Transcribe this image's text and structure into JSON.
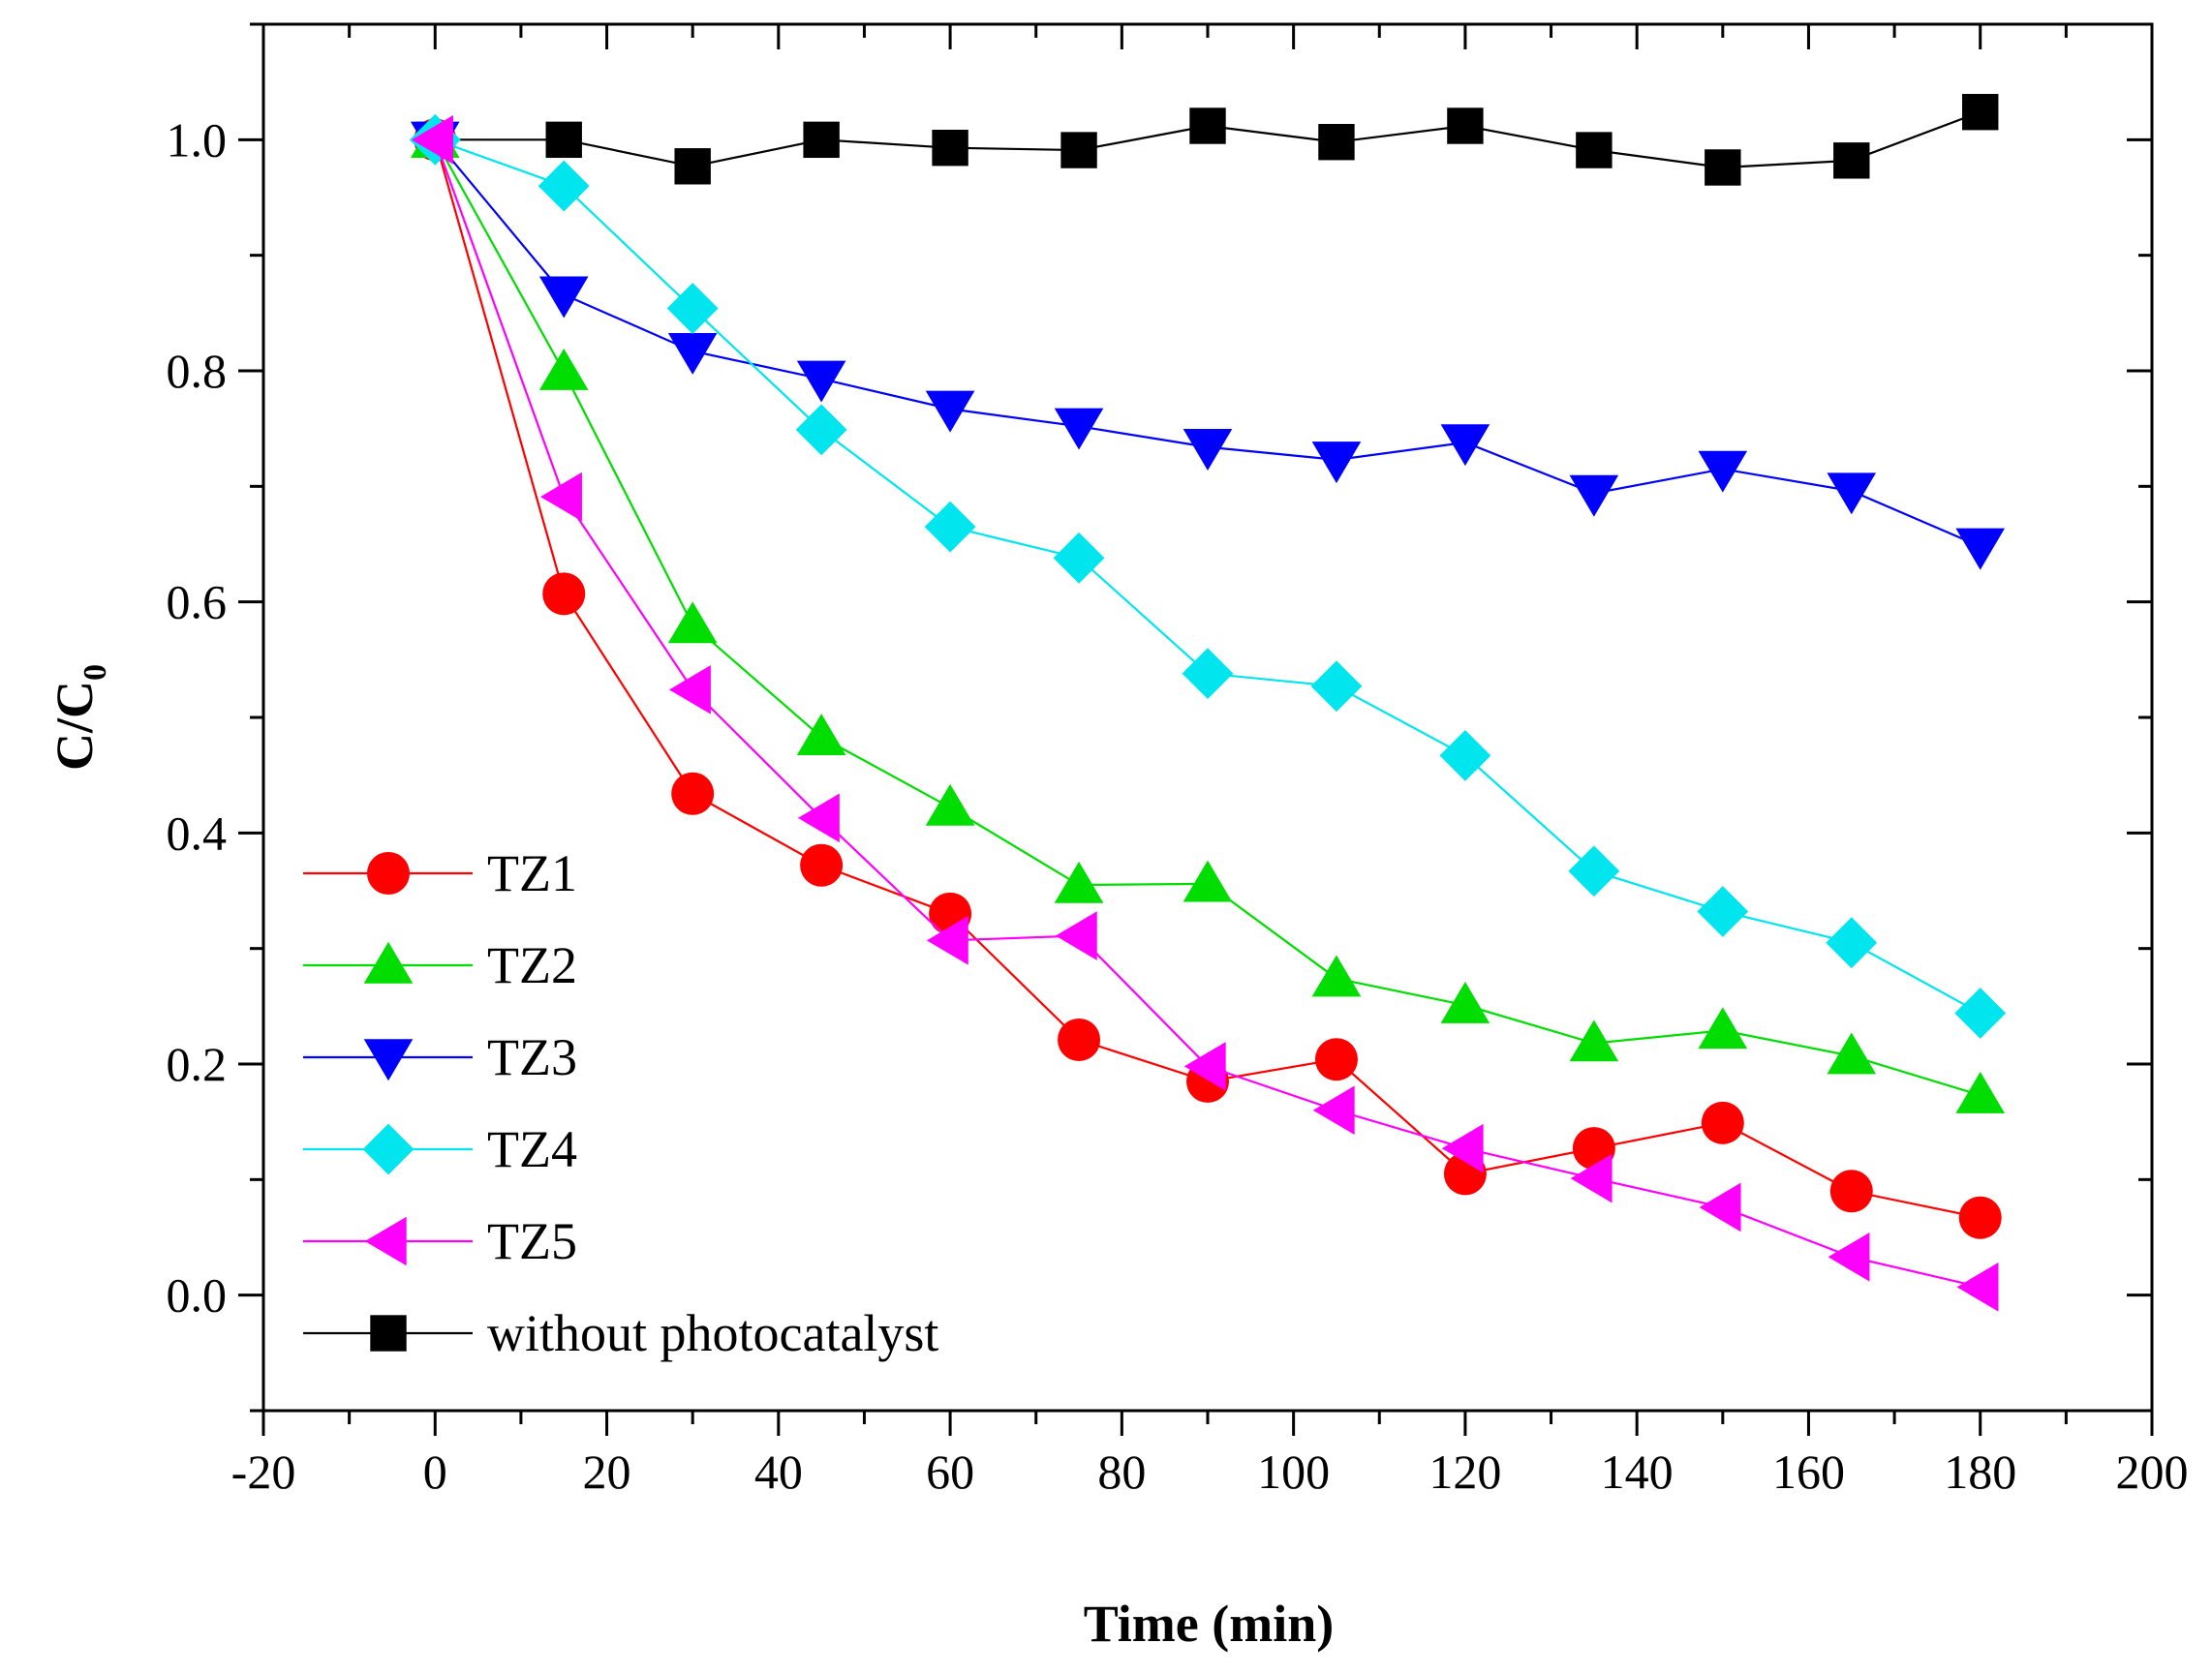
{
  "chart_data": {
    "type": "line",
    "title": "",
    "xlabel": "Time (min)",
    "ylabel": "C/C",
    "ylabel_sub": "0",
    "xlim": [
      -20,
      200
    ],
    "ylim": [
      -0.1,
      1.1
    ],
    "xticks": [
      -20,
      0,
      20,
      40,
      60,
      80,
      100,
      120,
      140,
      160,
      180,
      200
    ],
    "yticks": [
      "0.0",
      "0.2",
      "0.4",
      "0.6",
      "0.8",
      "1.0"
    ],
    "grid": false,
    "legend_position": "bottom-left",
    "x": [
      0,
      15,
      30,
      45,
      60,
      75,
      90,
      105,
      120,
      135,
      150,
      165,
      180
    ],
    "series": [
      {
        "name": "TZ1",
        "color": "#ff0000",
        "marker": "circle",
        "values": [
          1.0,
          0.607,
          0.434,
          0.372,
          0.33,
          0.221,
          0.185,
          0.204,
          0.105,
          0.127,
          0.149,
          0.09,
          0.067
        ]
      },
      {
        "name": "TZ2",
        "color": "#00dd00",
        "marker": "triangle-up",
        "values": [
          1.0,
          0.799,
          0.58,
          0.483,
          0.422,
          0.355,
          0.356,
          0.274,
          0.251,
          0.218,
          0.229,
          0.207,
          0.173
        ]
      },
      {
        "name": "TZ3",
        "color": "#0000ff",
        "marker": "triangle-down",
        "values": [
          1.0,
          0.866,
          0.817,
          0.793,
          0.767,
          0.752,
          0.734,
          0.723,
          0.738,
          0.694,
          0.715,
          0.696,
          0.648
        ]
      },
      {
        "name": "TZ4",
        "color": "#00e5ee",
        "marker": "diamond",
        "values": [
          1.0,
          0.96,
          0.854,
          0.749,
          0.665,
          0.638,
          0.538,
          0.527,
          0.467,
          0.367,
          0.332,
          0.305,
          0.244
        ]
      },
      {
        "name": "TZ5",
        "color": "#ff00ff",
        "marker": "triangle-left",
        "values": [
          1.0,
          0.691,
          0.524,
          0.413,
          0.307,
          0.311,
          0.198,
          0.16,
          0.127,
          0.101,
          0.076,
          0.033,
          0.007
        ]
      },
      {
        "name": "without photocatalyst",
        "color": "#000000",
        "marker": "square",
        "values": [
          1.0,
          1.0,
          0.977,
          1.0,
          0.993,
          0.991,
          1.012,
          0.998,
          1.012,
          0.991,
          0.976,
          0.982,
          1.024
        ]
      }
    ]
  }
}
